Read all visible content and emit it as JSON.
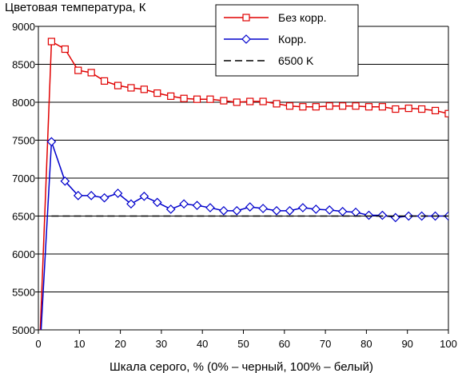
{
  "chart_data": {
    "type": "line",
    "ylabel": "Цветовая температура, К",
    "xlabel": "Шкала серого, % (0% – черный, 100% – белый)",
    "xlim": [
      0,
      100
    ],
    "ylim": [
      5000,
      9000
    ],
    "xticks": [
      "0",
      "10",
      "20",
      "30",
      "40",
      "50",
      "60",
      "70",
      "80",
      "90",
      "100"
    ],
    "yticks": [
      "5000",
      "5500",
      "6000",
      "6500",
      "7000",
      "7500",
      "8000",
      "8500",
      "9000"
    ],
    "grid": "horizontal",
    "legend_position": "top-right",
    "series": [
      {
        "name": "Без корр.",
        "color": "#e00000",
        "marker": "square",
        "x": [
          0,
          3.2,
          6.5,
          9.7,
          12.9,
          16.1,
          19.4,
          22.6,
          25.8,
          29.0,
          32.3,
          35.5,
          38.7,
          41.9,
          45.2,
          48.4,
          51.6,
          54.8,
          58.1,
          61.3,
          64.5,
          67.7,
          71.0,
          74.2,
          77.4,
          80.6,
          83.9,
          87.1,
          90.3,
          93.5,
          96.8,
          100
        ],
        "y": [
          4350,
          8800,
          8700,
          8420,
          8390,
          8280,
          8220,
          8190,
          8170,
          8120,
          8080,
          8050,
          8040,
          8040,
          8020,
          8000,
          8010,
          8010,
          7980,
          7950,
          7940,
          7940,
          7950,
          7950,
          7950,
          7940,
          7940,
          7910,
          7920,
          7910,
          7890,
          7850
        ]
      },
      {
        "name": "Корр.",
        "color": "#0000cc",
        "marker": "diamond",
        "x": [
          0,
          3.2,
          6.5,
          9.7,
          12.9,
          16.1,
          19.4,
          22.6,
          25.8,
          29.0,
          32.3,
          35.5,
          38.7,
          41.9,
          45.2,
          48.4,
          51.6,
          54.8,
          58.1,
          61.3,
          64.5,
          67.7,
          71.0,
          74.2,
          77.4,
          80.6,
          83.9,
          87.1,
          90.3,
          93.5,
          96.8,
          100
        ],
        "y": [
          4350,
          7480,
          6960,
          6770,
          6770,
          6740,
          6800,
          6660,
          6760,
          6680,
          6590,
          6660,
          6640,
          6610,
          6570,
          6570,
          6620,
          6600,
          6570,
          6570,
          6610,
          6590,
          6580,
          6560,
          6550,
          6510,
          6510,
          6480,
          6500,
          6500,
          6500,
          6500
        ]
      },
      {
        "name": "6500 K",
        "color": "#000000",
        "marker": "none",
        "dash": true,
        "x": [
          3.2,
          100
        ],
        "y": [
          6500,
          6500
        ]
      }
    ]
  }
}
